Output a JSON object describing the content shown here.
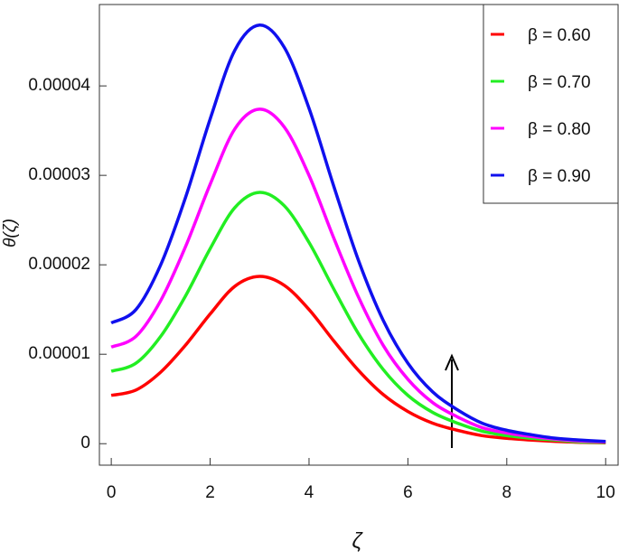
{
  "chart_data": {
    "type": "line",
    "xlabel": "ζ",
    "ylabel": "θ(ζ)",
    "x": [
      0,
      0.5,
      1,
      1.5,
      2,
      2.5,
      3,
      3.5,
      4,
      4.5,
      5,
      5.5,
      6,
      6.5,
      7,
      7.5,
      8,
      8.5,
      9,
      9.5,
      10
    ],
    "series": [
      {
        "name": "β = 0.60",
        "color": "#ff0000",
        "values": [
          5.4e-06,
          6e-06,
          8e-06,
          1.1e-05,
          1.45e-05,
          1.76e-05,
          1.87e-05,
          1.77e-05,
          1.5e-05,
          1.15e-05,
          8.2e-06,
          5.5e-06,
          3.6e-06,
          2.3e-06,
          1.5e-06,
          9e-07,
          6e-07,
          4e-07,
          2.5e-07,
          1.5e-07,
          1e-07
        ]
      },
      {
        "name": "β = 0.70",
        "color": "#22ee22",
        "values": [
          8.1e-06,
          9e-06,
          1.2e-05,
          1.65e-05,
          2.18e-05,
          2.64e-05,
          2.81e-05,
          2.66e-05,
          2.25e-05,
          1.73e-05,
          1.23e-05,
          8.3e-06,
          5.4e-06,
          3.5e-06,
          2.3e-06,
          1.4e-06,
          9e-07,
          6e-07,
          4e-07,
          2e-07,
          1.5e-07
        ]
      },
      {
        "name": "β = 0.80",
        "color": "#ff00ff",
        "values": [
          1.08e-05,
          1.2e-05,
          1.6e-05,
          2.2e-05,
          2.9e-05,
          3.52e-05,
          3.74e-05,
          3.54e-05,
          3e-05,
          2.3e-05,
          1.64e-05,
          1.1e-05,
          7.2e-06,
          4.6e-06,
          3e-06,
          1.8e-06,
          1.2e-06,
          8e-07,
          5e-07,
          3e-07,
          2e-07
        ]
      },
      {
        "name": "β = 0.90",
        "color": "#1010ee",
        "values": [
          1.35e-05,
          1.5e-05,
          2e-05,
          2.75e-05,
          3.63e-05,
          4.4e-05,
          4.68e-05,
          4.43e-05,
          3.75e-05,
          2.88e-05,
          2.05e-05,
          1.38e-05,
          9e-06,
          5.8e-06,
          3.8e-06,
          2.3e-06,
          1.5e-06,
          1e-06,
          6e-07,
          4e-07,
          2.5e-07
        ]
      }
    ],
    "xlim": [
      -0.24,
      10.27
    ],
    "ylim": [
      -2.4e-06,
      4.91e-05
    ],
    "xticks": [
      0,
      2,
      4,
      6,
      8,
      10
    ],
    "yticks": [
      0,
      1e-05,
      2e-05,
      3e-05,
      4e-05
    ],
    "legend": "upper right"
  }
}
